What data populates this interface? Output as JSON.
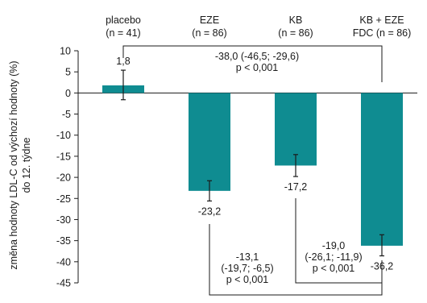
{
  "chart_data": {
    "type": "bar",
    "ylabel_lines": [
      "změna hodnoty LDL-C od  výchozí hodnoty (%)",
      "do 12. týdne"
    ],
    "ylim": [
      -45,
      10
    ],
    "yticks": [
      10,
      5,
      0,
      -5,
      -10,
      -15,
      -20,
      -25,
      -30,
      -35,
      -40,
      -45
    ],
    "categories": [
      {
        "name": "placebo",
        "n": "(n = 41)"
      },
      {
        "name": "EZE",
        "n": "(n = 86)"
      },
      {
        "name": "KB",
        "n": "(n = 86)"
      },
      {
        "name": "KB + EZE",
        "n": "FDC (n = 86)"
      }
    ],
    "values": [
      1.8,
      -23.2,
      -17.2,
      -36.2
    ],
    "value_labels": [
      "1,8",
      "-23,2",
      "-17,2",
      "-36,2"
    ],
    "error_bars": [
      [
        -1.6,
        5.4
      ],
      [
        -25.6,
        -20.8
      ],
      [
        -19.8,
        -14.6
      ],
      [
        -38.6,
        -33.6
      ]
    ],
    "bar_color": "#0f8c91",
    "grid": false,
    "comparisons": [
      {
        "from": "placebo",
        "to": "KB + EZE",
        "lines": [
          "-38,0 (-46,5; -29,6)",
          "p < 0,001"
        ]
      },
      {
        "from": "KB",
        "to": "KB + EZE",
        "lines": [
          "-19,0",
          "(-26,1; -11,9)",
          "p < 0,001"
        ]
      },
      {
        "from": "EZE",
        "to": "KB + EZE",
        "lines": [
          "-13,1",
          "(-19,7; -6,5)",
          "p < 0,001"
        ]
      }
    ]
  }
}
